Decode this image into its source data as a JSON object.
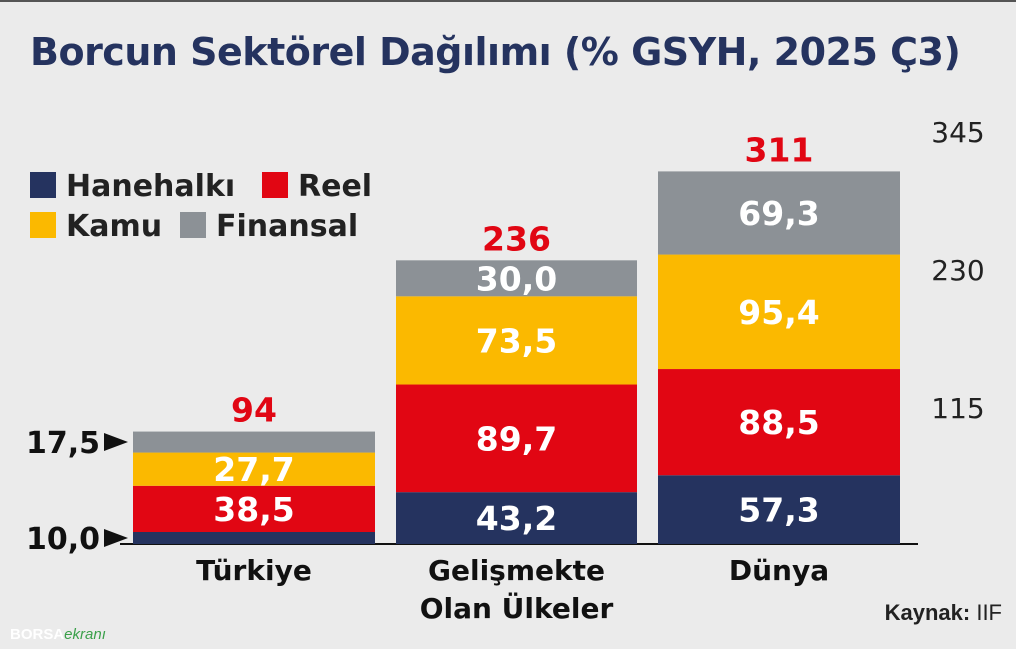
{
  "title": "Borcun Sektörel Dağılımı (% GSYH, 2025 Ç3)",
  "source": {
    "label": "Kaynak:",
    "value": "IIF"
  },
  "logo": {
    "part1": "BORSA",
    "part2": "ekranı"
  },
  "colors": {
    "Hanehalkı": "#25335f",
    "Reel": "#e10613",
    "Kamu": "#fbb900",
    "Finansal": "#8c9196",
    "total": "#e10613",
    "text": "#222222"
  },
  "chart_data": {
    "type": "bar",
    "stacked": true,
    "categories": [
      "Türkiye",
      "Gelişmekte Olan Ülkeler",
      "Dünya"
    ],
    "category_lines": [
      [
        "Türkiye"
      ],
      [
        "Gelişmekte",
        "Olan Ülkeler"
      ],
      [
        "Dünya"
      ]
    ],
    "series": [
      {
        "name": "Hanehalkı",
        "values": [
          10.0,
          43.2,
          57.3
        ],
        "labels": [
          "10,0",
          "43,2",
          "57,3"
        ]
      },
      {
        "name": "Reel",
        "values": [
          38.5,
          89.7,
          88.5
        ],
        "labels": [
          "38,5",
          "89,7",
          "88,5"
        ]
      },
      {
        "name": "Kamu",
        "values": [
          27.7,
          73.5,
          95.4
        ],
        "labels": [
          "27,7",
          "73,5",
          "95,4"
        ]
      },
      {
        "name": "Finansal",
        "values": [
          17.5,
          30.0,
          69.3
        ],
        "labels": [
          "17,5",
          "30,0",
          "69,3"
        ]
      }
    ],
    "totals": [
      94,
      236,
      311
    ],
    "total_labels": [
      "94",
      "236",
      "311"
    ],
    "external_labels": {
      "category": "Türkiye",
      "series": [
        "Hanehalkı",
        "Finansal"
      ]
    },
    "y_ticks": [
      115,
      230,
      345
    ],
    "y_tick_labels": [
      "115",
      "230",
      "345"
    ],
    "ylim": [
      0,
      345
    ],
    "legend": {
      "placement": "top-left",
      "rows": [
        [
          "Hanehalkı",
          "Reel"
        ],
        [
          "Kamu",
          "Finansal"
        ]
      ]
    },
    "grid": false
  }
}
